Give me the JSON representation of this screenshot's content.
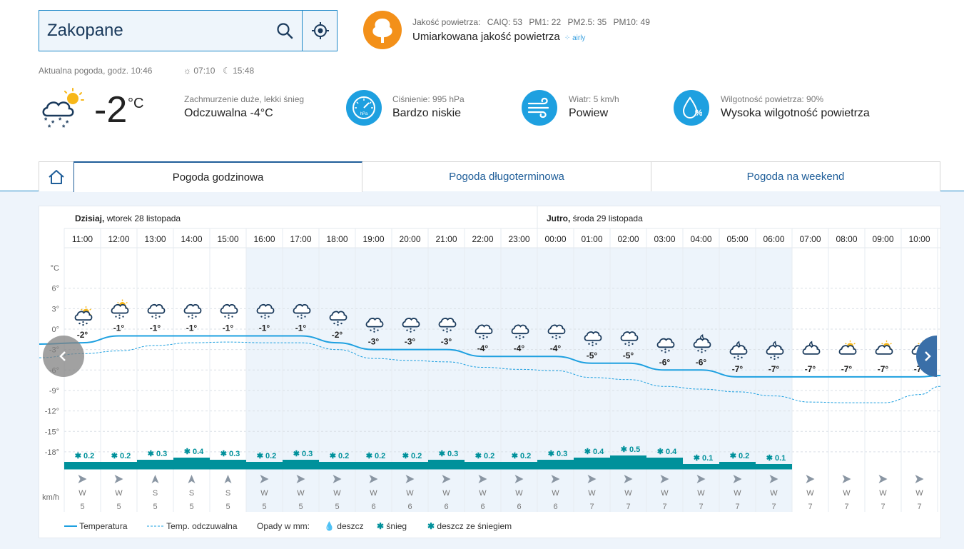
{
  "search": {
    "value": "Zakopane"
  },
  "air_quality": {
    "prefix": "Jakość powietrza:",
    "caiq": "CAIQ: 53",
    "pm1": "PM1: 22",
    "pm25": "PM2.5: 35",
    "pm10": "PM10: 49",
    "summary": "Umiarkowana jakość powietrza",
    "provider": "airly"
  },
  "current": {
    "label": "Aktualna pogoda, godz. 10:46",
    "sunrise": "07:10",
    "sunset": "15:48",
    "temp": "-2",
    "unit": "°C",
    "desc": "Zachmurzenie duże, lekki śnieg",
    "feels": "Odczuwalna -4°C",
    "pressure_label": "Ciśnienie: 995 hPa",
    "pressure_value": "Bardzo niskie",
    "pressure_unit": "hPa",
    "wind_label": "Wiatr: 5 km/h",
    "wind_value": "Powiew",
    "humidity_label": "Wilgotność powietrza: 90%",
    "humidity_value": "Wysoka wilgotność powietrza"
  },
  "tabs": [
    "Pogoda godzinowa",
    "Pogoda długoterminowa",
    "Pogoda na weekend"
  ],
  "chart_data": {
    "type": "line",
    "day_headers": [
      {
        "bold": "Dzisiaj,",
        "rest": " wtorek 28 listopada"
      },
      {
        "bold": "Jutro,",
        "rest": " środa 29 listopada"
      }
    ],
    "hours": [
      "11:00",
      "12:00",
      "13:00",
      "14:00",
      "15:00",
      "16:00",
      "17:00",
      "18:00",
      "19:00",
      "20:00",
      "21:00",
      "22:00",
      "23:00",
      "00:00",
      "01:00",
      "02:00",
      "03:00",
      "04:00",
      "05:00",
      "06:00",
      "07:00",
      "08:00",
      "09:00",
      "10:00"
    ],
    "y_label": "°C",
    "y_ticks": [
      6,
      3,
      0,
      -3,
      -6,
      -9,
      -12,
      -15,
      -18
    ],
    "y_tick_labels": [
      "6°",
      "3°",
      "0°",
      "-3°",
      "-6°",
      "-9°",
      "-12°",
      "-15°",
      "-18°"
    ],
    "temperature": [
      -2,
      -1,
      -1,
      -1,
      -1,
      -1,
      -1,
      -2,
      -3,
      -3,
      -3,
      -4,
      -4,
      -4,
      -5,
      -5,
      -6,
      -6,
      -7,
      -7,
      -7,
      -7,
      -7,
      -7
    ],
    "temp_labels": [
      "-2°",
      "-1°",
      "-1°",
      "-1°",
      "-1°",
      "-1°",
      "-1°",
      "-2°",
      "-3°",
      "-3°",
      "-3°",
      "-4°",
      "-4°",
      "-4°",
      "-5°",
      "-5°",
      "-6°",
      "-6°",
      "-7°",
      "-7°",
      "-7°",
      "-7°",
      "-7°",
      "-7°"
    ],
    "feels_like": [
      -3.6,
      -3.2,
      -2.4,
      -2.0,
      -1.9,
      -2.0,
      -2.0,
      -3.0,
      -4.3,
      -4.6,
      -4.8,
      -5.6,
      -5.9,
      -6.1,
      -7.1,
      -7.4,
      -8.4,
      -8.8,
      -9.2,
      -9.8,
      -10.7,
      -10.8,
      -10.8,
      -9.6
    ],
    "icons": [
      "partly-snow",
      "partly-snow",
      "snow",
      "snow",
      "snow",
      "snow",
      "snow",
      "snow",
      "snow",
      "snow",
      "snow",
      "snow",
      "snow",
      "snow",
      "snow",
      "snow",
      "snow",
      "night-snow",
      "night-snow",
      "night-snow",
      "night-cloud",
      "day-cloud",
      "day-cloud",
      "day-cloud"
    ],
    "precip": [
      0.2,
      0.2,
      0.3,
      0.4,
      0.3,
      0.2,
      0.3,
      0.2,
      0.2,
      0.2,
      0.3,
      0.2,
      0.2,
      0.3,
      0.4,
      0.5,
      0.4,
      0.1,
      0.2,
      0.1,
      0,
      0,
      0,
      0
    ],
    "precip_labels": [
      "0.2",
      "0.2",
      "0.3",
      "0.4",
      "0.3",
      "0.2",
      "0.3",
      "0.2",
      "0.2",
      "0.2",
      "0.3",
      "0.2",
      "0.2",
      "0.3",
      "0.4",
      "0.5",
      "0.4",
      "0.1",
      "0.2",
      "0.1",
      "",
      "",
      "",
      ""
    ],
    "wind_dir": [
      "W",
      "W",
      "S",
      "S",
      "S",
      "W",
      "W",
      "W",
      "W",
      "W",
      "W",
      "W",
      "W",
      "W",
      "W",
      "W",
      "W",
      "W",
      "W",
      "W",
      "W",
      "W",
      "W",
      "W"
    ],
    "wind_speed": [
      "5",
      "5",
      "5",
      "5",
      "5",
      "5",
      "5",
      "5",
      "6",
      "6",
      "6",
      "6",
      "6",
      "6",
      "7",
      "7",
      "7",
      "7",
      "7",
      "7",
      "7",
      "7",
      "7",
      "7"
    ],
    "wind_unit": "km/h",
    "shaded_hours": [
      5,
      19
    ]
  },
  "legend": {
    "temp": "Temperatura",
    "feels": "Temp. odczuwalna",
    "precip": "Opady w mm:",
    "rain": "deszcz",
    "snow": "śnieg",
    "sleet": "deszcz ze śniegiem"
  },
  "colors": {
    "accent": "#1ea0e0",
    "bar": "#00919b",
    "orange": "#f39019"
  }
}
